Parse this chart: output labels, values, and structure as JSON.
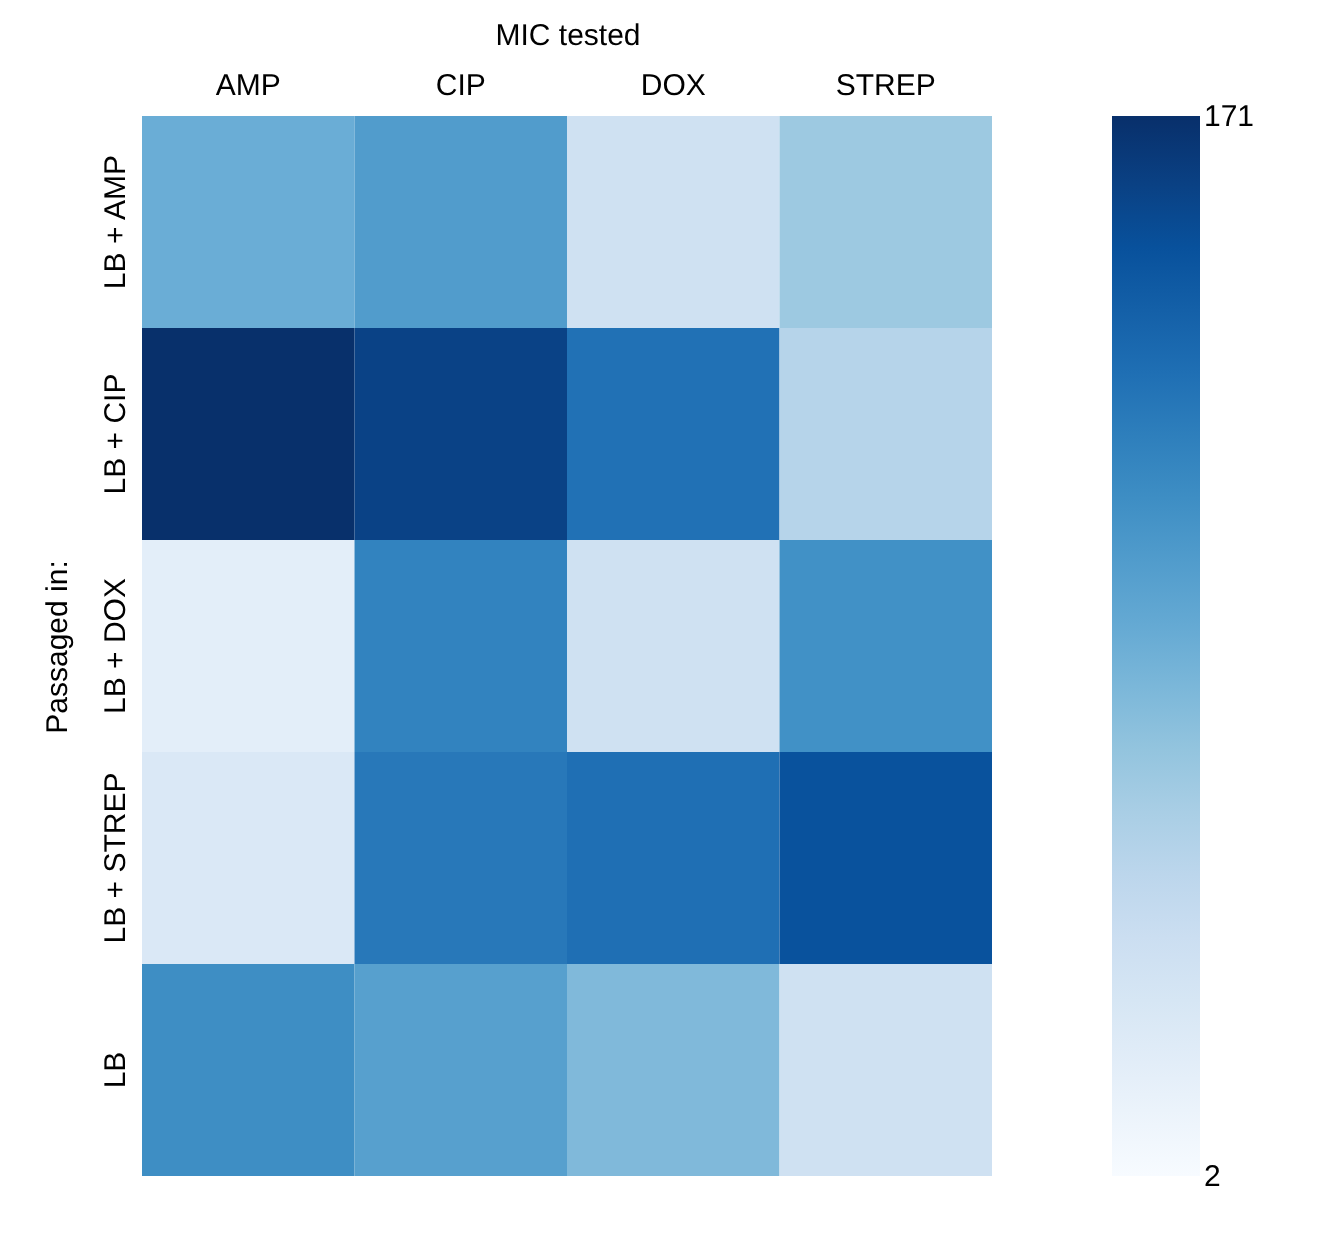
{
  "chart_data": {
    "type": "heatmap",
    "xlabel": "MIC tested",
    "ylabel": "Passaged in:",
    "categories": [
      "AMP",
      "CIP",
      "DOX",
      "STREP"
    ],
    "y_categories": [
      "LB + AMP",
      "LB + CIP",
      "LB + DOX",
      "LB + STREP",
      "LB"
    ],
    "cells": [
      [
        87,
        100,
        36,
        66
      ],
      [
        171,
        159,
        129,
        53
      ],
      [
        19,
        117,
        36,
        108
      ],
      [
        27,
        124,
        130,
        149
      ],
      [
        110,
        97,
        78,
        36
      ]
    ],
    "clim": [
      2,
      171
    ],
    "cticks": [
      2,
      171
    ]
  }
}
